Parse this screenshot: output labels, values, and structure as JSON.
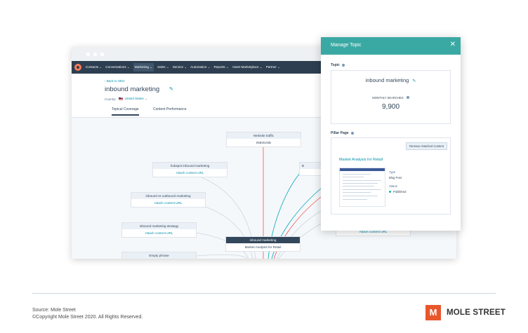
{
  "app": {
    "nav": [
      "Contacts ⌄",
      "Conversations ⌄",
      "Marketing ⌄",
      "Sales ⌄",
      "Service ⌄",
      "Automation ⌄",
      "Reports ⌄",
      "Asset Marketplace ⌄",
      "Partner ⌄"
    ],
    "back_link": "‹ Back to SEO",
    "topic_title": "inbound marketing",
    "country_label": "Country",
    "country_value": "United States ⌄",
    "tabs": [
      "Topical Coverage",
      "Content Performance"
    ]
  },
  "graph": {
    "website_traffic": {
      "title": "Website traffic",
      "body": "INBOUND"
    },
    "hubspot": {
      "title": "hubspot inbound marketing",
      "body": "Attach content URL"
    },
    "vs_outbound": {
      "title": "inbound vs outbound marketing",
      "body": "Attach content URL"
    },
    "strategy": {
      "title": "inbound marketing strategy",
      "body": "Attach content URL"
    },
    "empty": {
      "title": "Empty phrase"
    },
    "center": {
      "title": "inbound marketing",
      "body": "Market Analysis for Retail"
    },
    "right_partial": {
      "title": "B",
      "body": "Attach content URL"
    }
  },
  "panel": {
    "title": "Manage Topic",
    "close": "✕",
    "topic_label": "Topic",
    "topic_value": "inbound marketing",
    "monthly_searches_label": "MONTHLY SEARCHES",
    "monthly_searches_value": "9,900",
    "pillar_label": "Pillar Page",
    "remove_button": "Remove Attached Content",
    "post_title": "Market Analysis for Retail",
    "type_label": "Type",
    "type_value": "Blog Post",
    "status_label": "Status",
    "status_value": "Published"
  },
  "footer": {
    "source": "Source: Mole Street",
    "copyright": "©Copyright Mole Street 2020. All Rights Reserved.",
    "logo_text": "MOLE STREET",
    "logo_mark": "M"
  },
  "colors": {
    "teal_header": "#3ba9a3",
    "nav_dark": "#2d3e50",
    "link": "#0091ae",
    "line_red": "#f2545b",
    "line_teal": "#00a4bd",
    "brand_orange": "#e8572b"
  }
}
